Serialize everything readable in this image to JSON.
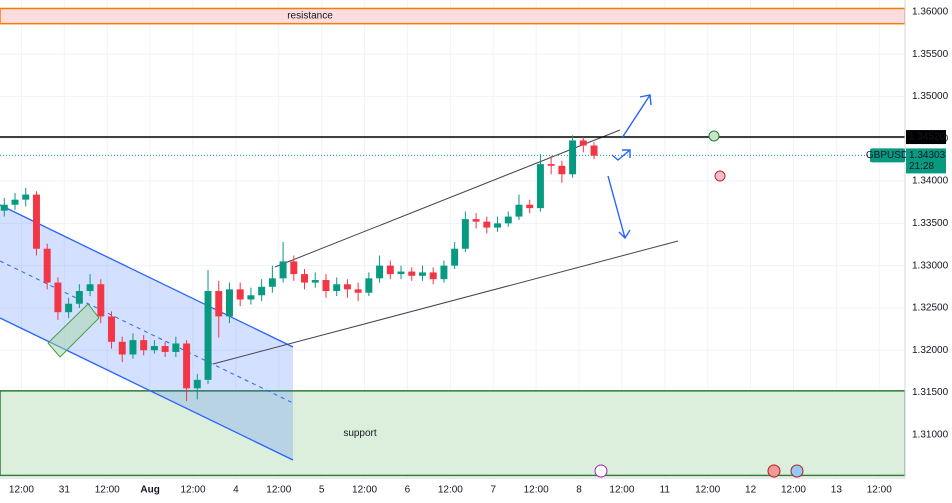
{
  "chart_data": {
    "type": "candlestick",
    "symbol": "GBPUSD",
    "countdown": "21:28",
    "up_color": "#089981",
    "down_color": "#f23645",
    "grid": true,
    "xlim": [
      -0.5,
      20.6
    ],
    "ylim": [
      1.3049,
      1.3614
    ],
    "yticks": [
      {
        "value": 1.31,
        "label": "1.31000"
      },
      {
        "value": 1.315,
        "label": "1.31500"
      },
      {
        "value": 1.32,
        "label": "1.32000"
      },
      {
        "value": 1.325,
        "label": "1.32500"
      },
      {
        "value": 1.33,
        "label": "1.33000"
      },
      {
        "value": 1.335,
        "label": "1.33500"
      },
      {
        "value": 1.34,
        "label": "1.34000"
      },
      {
        "value": 1.345,
        "label": "1.34500"
      },
      {
        "value": 1.35,
        "label": "1.35000"
      },
      {
        "value": 1.355,
        "label": "1.35500"
      },
      {
        "value": 1.36,
        "label": "1.36000"
      }
    ],
    "xticks": [
      {
        "value": 0,
        "label": "12:00"
      },
      {
        "value": 1,
        "label": "31"
      },
      {
        "value": 2,
        "label": "12:00"
      },
      {
        "value": 3,
        "label": "Aug"
      },
      {
        "value": 4,
        "label": "12:00"
      },
      {
        "value": 5,
        "label": "4"
      },
      {
        "value": 6,
        "label": "12:00"
      },
      {
        "value": 7,
        "label": "5"
      },
      {
        "value": 8,
        "label": "12:00"
      },
      {
        "value": 9,
        "label": "6"
      },
      {
        "value": 10,
        "label": "12:00"
      },
      {
        "value": 11,
        "label": "7"
      },
      {
        "value": 12,
        "label": "12:00"
      },
      {
        "value": 13,
        "label": "8"
      },
      {
        "value": 14,
        "label": "12:00"
      },
      {
        "value": 15,
        "label": "11"
      },
      {
        "value": 16,
        "label": "12:00"
      },
      {
        "value": 17,
        "label": "12"
      },
      {
        "value": 18,
        "label": "12:00"
      },
      {
        "value": 19,
        "label": "13"
      },
      {
        "value": 20,
        "label": "12:00"
      }
    ],
    "x": [
      -0.4,
      -0.15,
      0.1,
      0.35,
      0.6,
      0.85,
      1.1,
      1.35,
      1.6,
      1.85,
      2.1,
      2.35,
      2.6,
      2.85,
      3.1,
      3.35,
      3.6,
      3.85,
      4.1,
      4.35,
      4.6,
      4.85,
      5.1,
      5.35,
      5.6,
      5.85,
      6.1,
      6.35,
      6.6,
      6.85,
      7.1,
      7.35,
      7.6,
      7.85,
      8.1,
      8.35,
      8.6,
      8.85,
      9.1,
      9.35,
      9.6,
      9.85,
      10.1,
      10.35,
      10.6,
      10.85,
      11.1,
      11.35,
      11.6,
      11.85,
      12.1,
      12.35,
      12.6,
      12.85,
      13.1,
      13.35
    ],
    "open": [
      1.3365,
      1.3372,
      1.3378,
      1.3384,
      1.332,
      1.328,
      1.3245,
      1.3255,
      1.327,
      1.3278,
      1.324,
      1.321,
      1.3195,
      1.3212,
      1.32,
      1.3205,
      1.3198,
      1.3208,
      1.3155,
      1.3165,
      1.327,
      1.324,
      1.3272,
      1.326,
      1.3265,
      1.3275,
      1.3285,
      1.3305,
      1.329,
      1.328,
      1.3283,
      1.327,
      1.3278,
      1.3272,
      1.3268,
      1.3285,
      1.33,
      1.329,
      1.3293,
      1.3288,
      1.3292,
      1.3284,
      1.33,
      1.332,
      1.3355,
      1.3352,
      1.3345,
      1.335,
      1.3358,
      1.3372,
      1.3368,
      1.342,
      1.3418,
      1.3408,
      1.3448,
      1.3442
    ],
    "high": [
      1.338,
      1.3386,
      1.3392,
      1.3388,
      1.3326,
      1.3286,
      1.3262,
      1.3278,
      1.329,
      1.3284,
      1.3246,
      1.3216,
      1.322,
      1.3218,
      1.3212,
      1.321,
      1.3216,
      1.3212,
      1.3172,
      1.3295,
      1.3282,
      1.328,
      1.328,
      1.3274,
      1.3284,
      1.33,
      1.3328,
      1.3312,
      1.3296,
      1.3292,
      1.329,
      1.3286,
      1.3284,
      1.328,
      1.3292,
      1.3312,
      1.3306,
      1.33,
      1.3298,
      1.33,
      1.3298,
      1.3306,
      1.3328,
      1.3364,
      1.3362,
      1.3358,
      1.3358,
      1.3364,
      1.3384,
      1.3378,
      1.3432,
      1.343,
      1.3424,
      1.3454,
      1.3452,
      1.3446
    ],
    "low": [
      1.3358,
      1.3366,
      1.337,
      1.3312,
      1.3272,
      1.3236,
      1.3238,
      1.325,
      1.3264,
      1.3232,
      1.3202,
      1.3186,
      1.319,
      1.3194,
      1.3196,
      1.3192,
      1.3192,
      1.314,
      1.3142,
      1.316,
      1.3215,
      1.3232,
      1.3252,
      1.3254,
      1.3258,
      1.3268,
      1.328,
      1.3282,
      1.3272,
      1.3274,
      1.3262,
      1.3264,
      1.3262,
      1.3258,
      1.3264,
      1.328,
      1.3284,
      1.3284,
      1.3282,
      1.3282,
      1.3278,
      1.328,
      1.3296,
      1.3316,
      1.3344,
      1.3338,
      1.334,
      1.3346,
      1.3354,
      1.3362,
      1.3364,
      1.3408,
      1.3398,
      1.3404,
      1.3434,
      1.3426
    ],
    "close": [
      1.3372,
      1.3378,
      1.3384,
      1.332,
      1.328,
      1.3245,
      1.3255,
      1.327,
      1.3278,
      1.324,
      1.321,
      1.3195,
      1.3212,
      1.32,
      1.3205,
      1.3198,
      1.3208,
      1.3155,
      1.3165,
      1.327,
      1.324,
      1.3272,
      1.326,
      1.3265,
      1.3275,
      1.3285,
      1.3305,
      1.329,
      1.328,
      1.3283,
      1.327,
      1.3278,
      1.3272,
      1.3268,
      1.3285,
      1.33,
      1.329,
      1.3293,
      1.3288,
      1.3292,
      1.3284,
      1.33,
      1.332,
      1.3355,
      1.3352,
      1.3345,
      1.335,
      1.3358,
      1.3372,
      1.3368,
      1.342,
      1.3418,
      1.3408,
      1.3448,
      1.3442,
      1.343
    ],
    "hline": {
      "value": 1.3452,
      "label": "1.34520"
    },
    "last_price": {
      "value": 1.34303,
      "label": "1.34303"
    },
    "zones": [
      {
        "label": "resistance",
        "range": [
          1.3586,
          1.3604
        ],
        "fill": "#fcdcdf",
        "border": "#f57c00"
      },
      {
        "label": "support",
        "range": [
          1.3052,
          1.3152
        ],
        "fill": "#dcefdc",
        "border": "#2e7d32"
      }
    ]
  }
}
